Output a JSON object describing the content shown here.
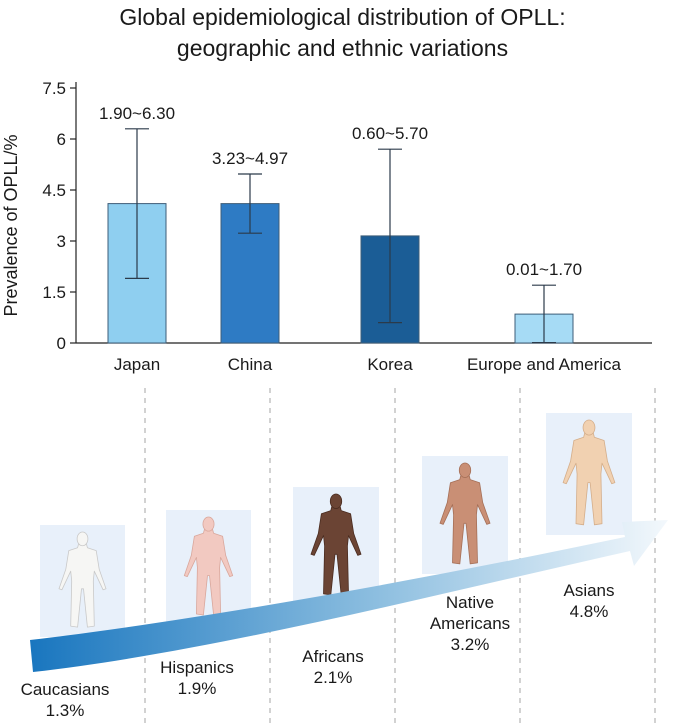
{
  "title": {
    "line1": "Global epidemiological distribution of OPLL:",
    "line2": "geographic and ethnic variations"
  },
  "colors": {
    "light_blue": "#8fcff0",
    "mid_blue": "#2e7bc4",
    "dark_blue": "#1b5d96",
    "pale_blue": "#a6dbf5",
    "axis": "#222222",
    "errorbar": "#2b3a4a",
    "card_bg": "#e8f0fa",
    "dashed": "#b5b5b5",
    "arrow_start": "#1976bf",
    "arrow_end": "#f3f8fc"
  },
  "chart_data": {
    "type": "bar",
    "title": "Global epidemiological distribution of OPLL: geographic and ethnic variations",
    "ylabel": "Prevalence of OPLL/%",
    "xlabel": "",
    "ylim": [
      0,
      7.5
    ],
    "yticks": [
      0,
      1.5,
      3,
      4.5,
      6,
      7.5
    ],
    "ytick_labels": [
      "0",
      "1.5",
      "3",
      "4.5",
      "6",
      "7.5"
    ],
    "categories": [
      "Japan",
      "China",
      "Korea",
      "Europe and America"
    ],
    "values": [
      4.1,
      4.1,
      3.15,
      0.85
    ],
    "error_low": [
      1.9,
      3.23,
      0.6,
      0.01
    ],
    "error_high": [
      6.3,
      4.97,
      5.7,
      1.7
    ],
    "range_labels": [
      "1.90~6.30",
      "3.23~4.97",
      "0.60~5.70",
      "0.01~1.70"
    ],
    "bar_colors": [
      "#8fcff0",
      "#2e7bc4",
      "#1b5d96",
      "#a6dbf5"
    ]
  },
  "populations": [
    {
      "name": "Caucasians",
      "value": "1.3%",
      "skin": "#f6f6f4",
      "outline": "#c9c9c9",
      "icon": "human-figure-icon"
    },
    {
      "name": "Hispanics",
      "value": "1.9%",
      "skin": "#f2c9c1",
      "outline": "#d9a79c",
      "icon": "human-figure-icon"
    },
    {
      "name": "Africans",
      "value": "2.1%",
      "skin": "#6b4434",
      "outline": "#4a2c20",
      "icon": "human-figure-icon"
    },
    {
      "name": "Native\nAmericans",
      "value": "3.2%",
      "skin": "#c98f75",
      "outline": "#a56f57",
      "icon": "human-figure-icon"
    },
    {
      "name": "Asians",
      "value": "4.8%",
      "skin": "#f1d1b1",
      "outline": "#d4ae8b",
      "icon": "human-figure-icon"
    }
  ]
}
